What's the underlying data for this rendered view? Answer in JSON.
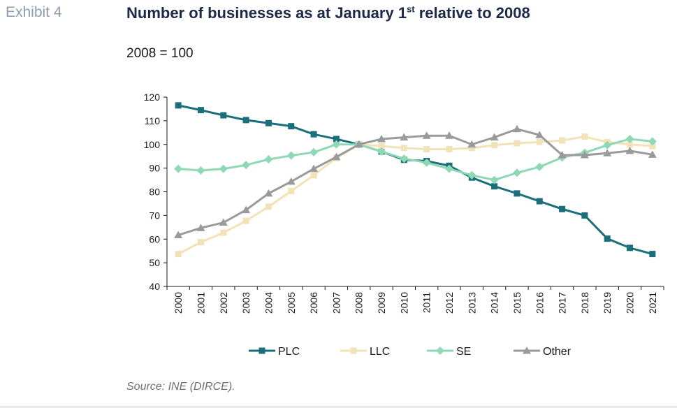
{
  "exhibit_label": "Exhibit 4",
  "title_main": "Number of businesses as at January 1",
  "title_sup": "st",
  "title_tail": " relative to 2008",
  "source": "Source: INE (DIRCE).",
  "chart_data": {
    "type": "line",
    "title": "Number of businesses as at January 1st relative to 2008",
    "subtitle": "2008 = 100",
    "xlabel": "",
    "ylabel": "",
    "ylim": [
      40,
      120
    ],
    "yticks": [
      40,
      50,
      60,
      70,
      80,
      90,
      100,
      110,
      120
    ],
    "grid": false,
    "legend": "bottom",
    "x": [
      "2000",
      "2001",
      "2002",
      "2003",
      "2004",
      "2005",
      "2006",
      "2007",
      "2008",
      "2009",
      "2010",
      "2011",
      "2012",
      "2013",
      "2014",
      "2015",
      "2016",
      "2017",
      "2018",
      "2019",
      "2020",
      "2021"
    ],
    "series": [
      {
        "name": "PLC",
        "color": "#1b6f7a",
        "marker": "square",
        "values": [
          116.5,
          114.5,
          112.3,
          110.3,
          109,
          107.7,
          104.3,
          102.3,
          100,
          97,
          93.5,
          93,
          91,
          86,
          82.3,
          79.3,
          76,
          72.7,
          70,
          60.2,
          56.3,
          53.7
        ]
      },
      {
        "name": "LLC",
        "color": "#f2e2b8",
        "marker": "square",
        "values": [
          53.7,
          58.7,
          62.7,
          67.7,
          73.7,
          80.3,
          87,
          94.3,
          100,
          99.3,
          98.5,
          98,
          98,
          98.5,
          99.7,
          100.5,
          101,
          101.7,
          103.3,
          101,
          100,
          99.3
        ]
      },
      {
        "name": "SE",
        "color": "#8fd8b5",
        "marker": "diamond",
        "values": [
          89.7,
          89,
          89.7,
          91.3,
          93.7,
          95.3,
          96.7,
          100,
          100,
          97,
          94,
          92.3,
          89.7,
          87,
          85,
          88,
          90.5,
          94.5,
          96.5,
          99.7,
          102.3,
          101.3
        ]
      },
      {
        "name": "Other",
        "color": "#9a9a9a",
        "marker": "triangle",
        "values": [
          61.7,
          64.7,
          67,
          72.3,
          79.3,
          84.3,
          89.7,
          94.7,
          100,
          102.3,
          103,
          103.7,
          103.7,
          100,
          103,
          106.5,
          104,
          95.5,
          95.5,
          96.3,
          97.3,
          95.7
        ]
      }
    ]
  }
}
